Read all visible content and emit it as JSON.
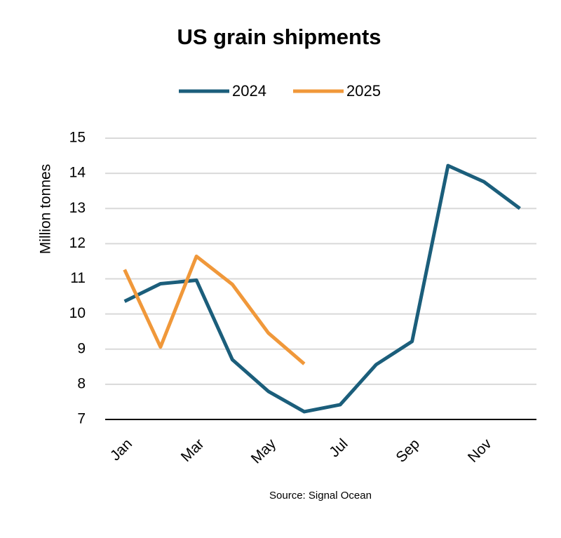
{
  "chart_data": {
    "type": "line",
    "title": "US grain shipments",
    "ylabel": "Million tonnes",
    "source": "Source: Signal Ocean",
    "categories": [
      "Jan",
      null,
      "Mar",
      null,
      "May",
      null,
      "Jul",
      null,
      "Sep",
      null,
      "Nov",
      null
    ],
    "series": [
      {
        "name": "2024",
        "color": "#1b5e7b",
        "values": [
          10.36,
          10.86,
          10.96,
          8.7,
          7.8,
          7.22,
          7.42,
          8.56,
          9.22,
          14.22,
          13.76,
          13.0
        ]
      },
      {
        "name": "2025",
        "color": "#f0983a",
        "values": [
          11.26,
          9.06,
          11.64,
          10.84,
          9.46,
          8.58,
          null,
          null,
          null,
          null,
          null,
          null
        ]
      }
    ],
    "ylim": [
      7,
      15
    ],
    "yticks": [
      7,
      8,
      9,
      10,
      11,
      12,
      13,
      14,
      15
    ],
    "grid": true,
    "legend": "top"
  }
}
